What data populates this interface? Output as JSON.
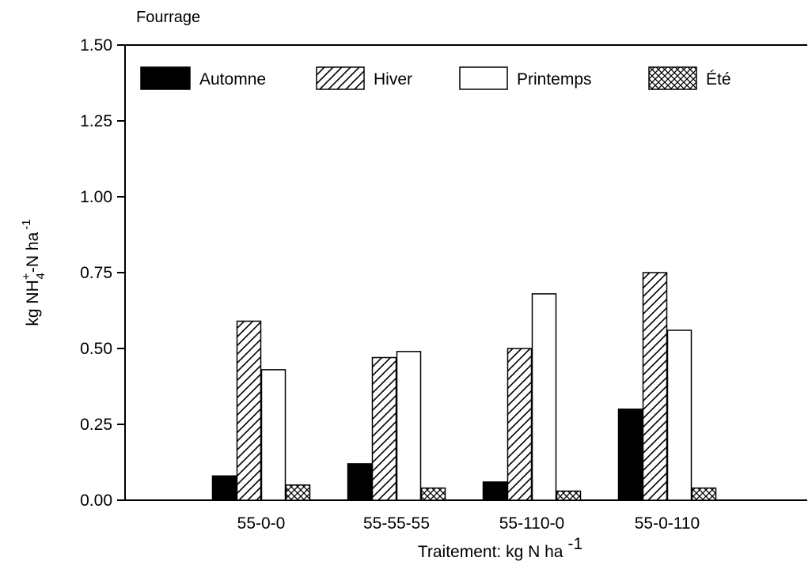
{
  "chart_data": {
    "type": "bar",
    "title": "Fourrage",
    "xlabel": "Traitement: kg N ha",
    "xlabel_sup": "-1",
    "ylabel_parts": [
      "kg NH",
      "+",
      "4",
      "-N ha",
      "-1"
    ],
    "categories": [
      "55-0-0",
      "55-55-55",
      "55-110-0",
      "55-0-110"
    ],
    "series": [
      {
        "name": "Automne",
        "values": [
          0.08,
          0.12,
          0.06,
          0.3
        ],
        "fill": "solid"
      },
      {
        "name": "Hiver",
        "values": [
          0.59,
          0.47,
          0.5,
          0.75
        ],
        "fill": "diagonal"
      },
      {
        "name": "Printemps",
        "values": [
          0.43,
          0.49,
          0.68,
          0.56
        ],
        "fill": "empty"
      },
      {
        "name": "Été",
        "values": [
          0.05,
          0.04,
          0.03,
          0.04
        ],
        "fill": "crosshatch"
      }
    ],
    "ylim": [
      0,
      1.5
    ],
    "yticks": [
      "0.00",
      "0.25",
      "0.50",
      "0.75",
      "1.00",
      "1.25",
      "1.50"
    ],
    "legend_position": "top",
    "grid": false,
    "colors": {
      "ink": "#000000",
      "background": "#ffffff"
    }
  }
}
